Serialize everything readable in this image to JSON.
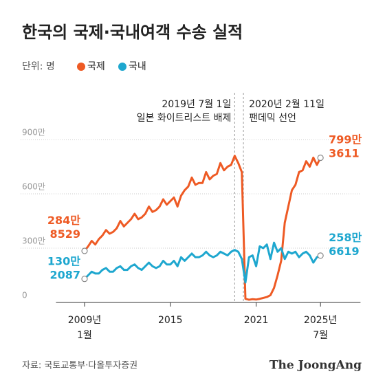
{
  "chart_data": {
    "type": "line",
    "title": "한국의 국제·국내여객 수송 실적",
    "unit_label": "단위: 명",
    "source": "자료: 국토교통부·다올투자증권",
    "brand": "The JoongAng",
    "x": [
      2009,
      2009.25,
      2009.5,
      2009.75,
      2010,
      2010.25,
      2010.5,
      2010.75,
      2011,
      2011.25,
      2011.5,
      2011.75,
      2012,
      2012.25,
      2012.5,
      2012.75,
      2013,
      2013.25,
      2013.5,
      2013.75,
      2014,
      2014.25,
      2014.5,
      2014.75,
      2015,
      2015.25,
      2015.5,
      2015.75,
      2016,
      2016.25,
      2016.5,
      2016.75,
      2017,
      2017.25,
      2017.5,
      2017.75,
      2018,
      2018.25,
      2018.5,
      2018.75,
      2019,
      2019.25,
      2019.5,
      2019.75,
      2020,
      2020.25,
      2020.5,
      2020.75,
      2021,
      2021.25,
      2021.5,
      2021.75,
      2022,
      2022.25,
      2022.5,
      2022.75,
      2023,
      2023.25,
      2023.5,
      2023.75,
      2024,
      2024.25,
      2024.5,
      2024.75,
      2025,
      2025.25,
      2025.5
    ],
    "series": [
      {
        "name": "국제",
        "color": "#ee5a24",
        "values": [
          2848529,
          3100000,
          3400000,
          3200000,
          3500000,
          3700000,
          4000000,
          3800000,
          3900000,
          4100000,
          4500000,
          4200000,
          4400000,
          4600000,
          4900000,
          4600000,
          4700000,
          4900000,
          5300000,
          5000000,
          5100000,
          5300000,
          5700000,
          5400000,
          5600000,
          5800000,
          5300000,
          5900000,
          6200000,
          6400000,
          6900000,
          6500000,
          6600000,
          6600000,
          7200000,
          6800000,
          7000000,
          7100000,
          7700000,
          7300000,
          7500000,
          7600000,
          8100000,
          7700000,
          7200000,
          200000,
          150000,
          180000,
          160000,
          200000,
          250000,
          300000,
          400000,
          800000,
          1500000,
          2300000,
          4400000,
          5300000,
          6200000,
          6500000,
          7200000,
          7300000,
          7800000,
          7500000,
          8000000,
          7600000,
          7993611
        ],
        "value_labels": [
          "284만 8529",
          null,
          null,
          null,
          null,
          null,
          null,
          null,
          null,
          null,
          null,
          null,
          null,
          null,
          null,
          null,
          null,
          null,
          null,
          null,
          null,
          null,
          null,
          null,
          null,
          null,
          null,
          null,
          null,
          null,
          null,
          null,
          null,
          null,
          null,
          null,
          null,
          null,
          null,
          null,
          null,
          null,
          null,
          null,
          null,
          null,
          null,
          null,
          null,
          null,
          null,
          null,
          null,
          null,
          null,
          null,
          null,
          null,
          null,
          null,
          null,
          null,
          null,
          null,
          null,
          null,
          "799만 3611"
        ]
      },
      {
        "name": "국내",
        "color": "#1ea7cf",
        "values": [
          1302087,
          1500000,
          1700000,
          1600000,
          1600000,
          1800000,
          1900000,
          1700000,
          1700000,
          1900000,
          2000000,
          1800000,
          1800000,
          2000000,
          2100000,
          1900000,
          1800000,
          2000000,
          2200000,
          2000000,
          1900000,
          2000000,
          2300000,
          2100000,
          2100000,
          2300000,
          2000000,
          2500000,
          2300000,
          2500000,
          2700000,
          2500000,
          2500000,
          2600000,
          2800000,
          2600000,
          2500000,
          2600000,
          2800000,
          2700000,
          2600000,
          2800000,
          2900000,
          2800000,
          2400000,
          1100000,
          2500000,
          2600000,
          2000000,
          3100000,
          3000000,
          3200000,
          2400000,
          3300000,
          2800000,
          3000000,
          2400000,
          2800000,
          2700000,
          2800000,
          2500000,
          2700000,
          2800000,
          2600000,
          2200000,
          2500000,
          2586619
        ],
        "value_labels": [
          "130만 2087",
          null,
          null,
          null,
          null,
          null,
          null,
          null,
          null,
          null,
          null,
          null,
          null,
          null,
          null,
          null,
          null,
          null,
          null,
          null,
          null,
          null,
          null,
          null,
          null,
          null,
          null,
          null,
          null,
          null,
          null,
          null,
          null,
          null,
          null,
          null,
          null,
          null,
          null,
          null,
          null,
          null,
          null,
          null,
          null,
          null,
          null,
          null,
          null,
          null,
          null,
          null,
          null,
          null,
          null,
          null,
          null,
          null,
          null,
          null,
          null,
          null,
          null,
          null,
          null,
          null,
          "258만 6619"
        ]
      }
    ],
    "xlim": [
      2007,
      2028.3
    ],
    "xticks": [
      {
        "value": 2009,
        "label": "2009년 1월"
      },
      2015,
      2021,
      {
        "value": 2025.5,
        "label": "2025년 7월"
      }
    ],
    "ylim": [
      0,
      9000000
    ],
    "yticks": [
      0,
      {
        "value": 3000000,
        "label": "300만"
      },
      {
        "value": 6000000,
        "label": "600만"
      },
      {
        "value": 9000000,
        "label": "900만"
      }
    ],
    "grid": true,
    "annotations": [
      {
        "x": 2019.5,
        "text": [
          "2019년 7월 1일",
          "일본 화이트리스트 배제"
        ]
      },
      {
        "x": 2020.11,
        "text": [
          "2020년 2월 11일",
          "팬데믹 선언"
        ]
      }
    ]
  }
}
